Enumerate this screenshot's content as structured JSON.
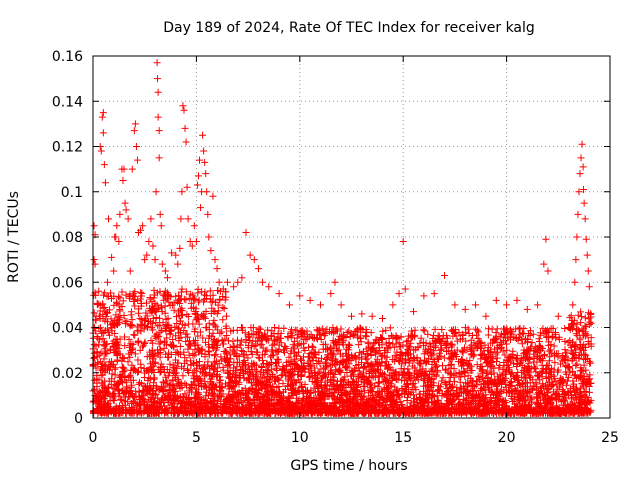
{
  "chart_data": {
    "type": "scatter",
    "title": "Day 189 of 2024, Rate Of TEC Index for receiver kalg",
    "xlabel": "GPS time / hours",
    "ylabel": "ROTI / TECUs",
    "xlim": [
      0,
      25
    ],
    "ylim": [
      0,
      0.16
    ],
    "x_ticks": [
      "0",
      "5",
      "10",
      "15",
      "20",
      "25"
    ],
    "y_ticks": [
      "0",
      "0.02",
      "0.04",
      "0.06",
      "0.08",
      "0.1",
      "0.12",
      "0.14",
      "0.16"
    ],
    "x_tick_values": [
      0,
      5,
      10,
      15,
      20,
      25
    ],
    "y_tick_values": [
      0,
      0.02,
      0.04,
      0.06,
      0.08,
      0.1,
      0.12,
      0.14,
      0.16
    ],
    "grid": true,
    "marker": "+",
    "color": "#ff0000",
    "series": [
      {
        "points": [
          [
            0.0,
            0.012
          ],
          [
            0.05,
            0.07
          ],
          [
            0.05,
            0.085
          ],
          [
            0.1,
            0.081
          ],
          [
            0.1,
            0.068
          ],
          [
            0.15,
            0.045
          ],
          [
            0.2,
            0.036
          ],
          [
            0.3,
            0.045
          ],
          [
            0.35,
            0.12
          ],
          [
            0.4,
            0.118
          ],
          [
            0.45,
            0.133
          ],
          [
            0.5,
            0.135
          ],
          [
            0.5,
            0.126
          ],
          [
            0.55,
            0.112
          ],
          [
            0.6,
            0.104
          ],
          [
            0.7,
            0.06
          ],
          [
            0.75,
            0.088
          ],
          [
            0.9,
            0.071
          ],
          [
            1.0,
            0.065
          ],
          [
            1.05,
            0.08
          ],
          [
            1.1,
            0.08
          ],
          [
            1.15,
            0.085
          ],
          [
            1.25,
            0.078
          ],
          [
            1.3,
            0.09
          ],
          [
            1.4,
            0.11
          ],
          [
            1.45,
            0.105
          ],
          [
            1.5,
            0.11
          ],
          [
            1.55,
            0.095
          ],
          [
            1.6,
            0.092
          ],
          [
            1.7,
            0.088
          ],
          [
            1.8,
            0.065
          ],
          [
            1.9,
            0.11
          ],
          [
            2.0,
            0.127
          ],
          [
            2.05,
            0.13
          ],
          [
            2.1,
            0.12
          ],
          [
            2.15,
            0.114
          ],
          [
            2.2,
            0.082
          ],
          [
            2.3,
            0.083
          ],
          [
            2.4,
            0.085
          ],
          [
            2.5,
            0.07
          ],
          [
            2.6,
            0.072
          ],
          [
            2.7,
            0.078
          ],
          [
            2.8,
            0.088
          ],
          [
            2.9,
            0.076
          ],
          [
            3.0,
            0.07
          ],
          [
            3.05,
            0.1
          ],
          [
            3.1,
            0.157
          ],
          [
            3.12,
            0.15
          ],
          [
            3.15,
            0.144
          ],
          [
            3.15,
            0.133
          ],
          [
            3.2,
            0.127
          ],
          [
            3.2,
            0.115
          ],
          [
            3.25,
            0.09
          ],
          [
            3.3,
            0.085
          ],
          [
            3.35,
            0.068
          ],
          [
            3.5,
            0.065
          ],
          [
            3.6,
            0.062
          ],
          [
            3.8,
            0.073
          ],
          [
            4.0,
            0.072
          ],
          [
            4.1,
            0.068
          ],
          [
            4.2,
            0.075
          ],
          [
            4.25,
            0.088
          ],
          [
            4.3,
            0.1
          ],
          [
            4.35,
            0.138
          ],
          [
            4.4,
            0.136
          ],
          [
            4.45,
            0.128
          ],
          [
            4.5,
            0.122
          ],
          [
            4.55,
            0.102
          ],
          [
            4.6,
            0.088
          ],
          [
            4.7,
            0.078
          ],
          [
            4.8,
            0.076
          ],
          [
            4.9,
            0.085
          ],
          [
            5.0,
            0.078
          ],
          [
            5.05,
            0.103
          ],
          [
            5.1,
            0.107
          ],
          [
            5.15,
            0.114
          ],
          [
            5.2,
            0.093
          ],
          [
            5.25,
            0.1
          ],
          [
            5.3,
            0.125
          ],
          [
            5.35,
            0.118
          ],
          [
            5.4,
            0.113
          ],
          [
            5.45,
            0.108
          ],
          [
            5.5,
            0.1
          ],
          [
            5.55,
            0.09
          ],
          [
            5.6,
            0.08
          ],
          [
            5.7,
            0.074
          ],
          [
            5.8,
            0.098
          ],
          [
            5.9,
            0.07
          ],
          [
            6.0,
            0.066
          ],
          [
            6.1,
            0.06
          ],
          [
            6.3,
            0.057
          ],
          [
            6.5,
            0.06
          ],
          [
            6.8,
            0.058
          ],
          [
            7.0,
            0.06
          ],
          [
            7.2,
            0.062
          ],
          [
            7.4,
            0.082
          ],
          [
            7.6,
            0.072
          ],
          [
            7.8,
            0.07
          ],
          [
            8.0,
            0.066
          ],
          [
            8.2,
            0.06
          ],
          [
            8.5,
            0.058
          ],
          [
            9.0,
            0.055
          ],
          [
            9.5,
            0.05
          ],
          [
            10.0,
            0.054
          ],
          [
            10.5,
            0.052
          ],
          [
            11.0,
            0.05
          ],
          [
            11.5,
            0.055
          ],
          [
            11.7,
            0.06
          ],
          [
            12.0,
            0.05
          ],
          [
            12.5,
            0.045
          ],
          [
            13.0,
            0.046
          ],
          [
            13.5,
            0.045
          ],
          [
            14.0,
            0.044
          ],
          [
            14.5,
            0.05
          ],
          [
            14.8,
            0.055
          ],
          [
            15.0,
            0.078
          ],
          [
            15.1,
            0.057
          ],
          [
            15.5,
            0.047
          ],
          [
            16.0,
            0.054
          ],
          [
            16.5,
            0.055
          ],
          [
            17.0,
            0.063
          ],
          [
            17.5,
            0.05
          ],
          [
            18.0,
            0.048
          ],
          [
            18.5,
            0.05
          ],
          [
            19.0,
            0.045
          ],
          [
            19.5,
            0.052
          ],
          [
            20.0,
            0.05
          ],
          [
            20.5,
            0.052
          ],
          [
            21.0,
            0.048
          ],
          [
            21.5,
            0.05
          ],
          [
            21.8,
            0.068
          ],
          [
            21.9,
            0.079
          ],
          [
            22.0,
            0.065
          ],
          [
            22.5,
            0.045
          ],
          [
            23.0,
            0.04
          ],
          [
            23.2,
            0.05
          ],
          [
            23.3,
            0.06
          ],
          [
            23.35,
            0.07
          ],
          [
            23.4,
            0.08
          ],
          [
            23.45,
            0.09
          ],
          [
            23.5,
            0.1
          ],
          [
            23.55,
            0.108
          ],
          [
            23.6,
            0.115
          ],
          [
            23.65,
            0.121
          ],
          [
            23.7,
            0.111
          ],
          [
            23.72,
            0.101
          ],
          [
            23.75,
            0.095
          ],
          [
            23.8,
            0.088
          ],
          [
            23.85,
            0.079
          ],
          [
            23.9,
            0.072
          ],
          [
            23.95,
            0.065
          ],
          [
            24.0,
            0.058
          ]
        ]
      }
    ]
  }
}
